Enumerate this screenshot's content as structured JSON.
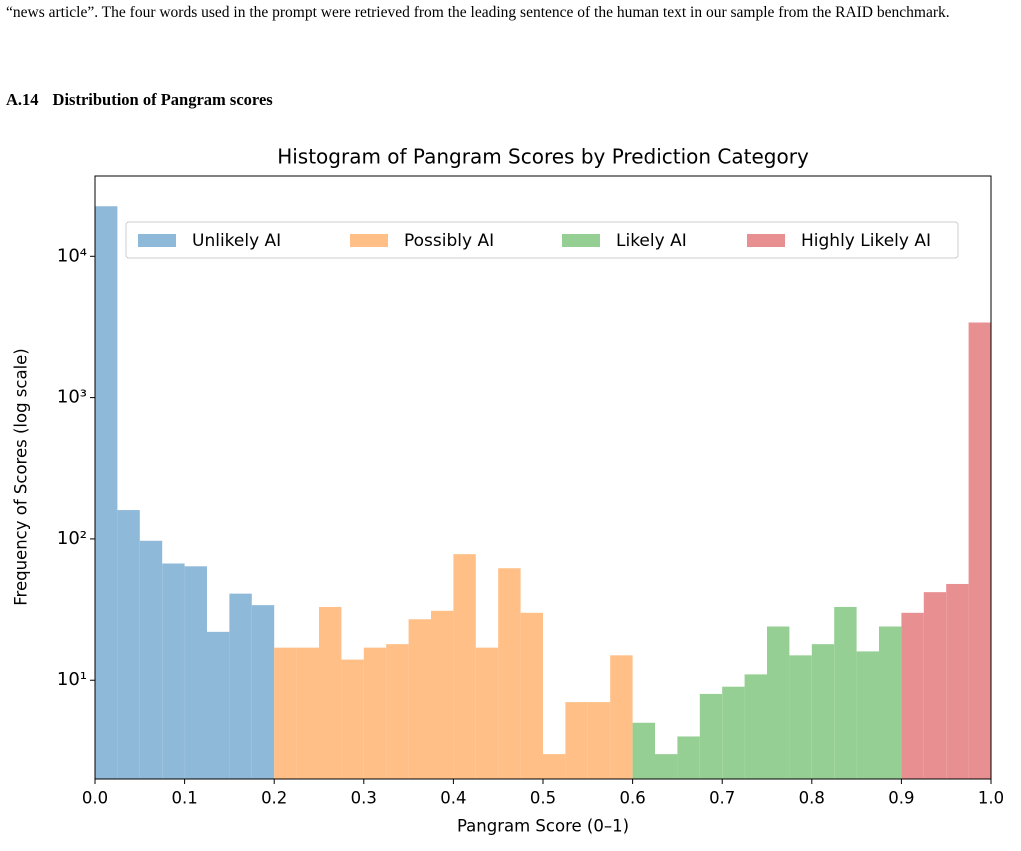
{
  "document": {
    "paragraph": "“news article”. The four words used in the prompt were retrieved from the leading sentence of the human text in our sample from the RAID benchmark.",
    "section_number": "A.14",
    "section_title": "Distribution of Pangram scores"
  },
  "chart_data": {
    "type": "histogram",
    "title": "Histogram of Pangram Scores by Prediction Category",
    "x_label": "Pangram Score (0–1)",
    "y_label": "Frequency of Scores (log scale)",
    "log_scale": true,
    "legend": "upper center",
    "xlim": [
      0,
      1
    ],
    "xticks": [
      {
        "value": 0,
        "label": "0.0"
      },
      0.1,
      0.2,
      0.3,
      0.4,
      0.5,
      0.6,
      0.7,
      0.8,
      0.9,
      {
        "value": 1,
        "label": "1.0"
      }
    ],
    "ylim": [
      2,
      37000
    ],
    "yticks": [
      {
        "value": 10,
        "label": "10¹"
      },
      {
        "value": 100,
        "label": "10²"
      },
      {
        "value": 1000,
        "label": "10³"
      },
      {
        "value": 10000,
        "label": "10⁴"
      }
    ],
    "series": [
      {
        "name": "Unlikely AI",
        "color": "#8fb9d9",
        "bins": [
          0,
          0.025,
          0.05,
          0.075,
          0.1,
          0.125,
          0.15,
          0.175,
          0.2
        ],
        "values": [
          22600,
          160,
          97,
          67,
          64,
          22,
          41,
          34
        ]
      },
      {
        "name": "Possibly AI",
        "color": "#ffbf86",
        "bins": [
          0.2,
          0.225,
          0.25,
          0.275,
          0.3,
          0.325,
          0.35,
          0.375,
          0.4,
          0.425,
          0.45,
          0.475,
          0.5,
          0.525,
          0.55,
          0.575,
          0.6
        ],
        "values": [
          17,
          17,
          33,
          14,
          17,
          18,
          27,
          31,
          78,
          17,
          62,
          30,
          3,
          7,
          7,
          15
        ]
      },
      {
        "name": "Likely AI",
        "color": "#96cf94",
        "bins": [
          0.6,
          0.625,
          0.65,
          0.675,
          0.7,
          0.725,
          0.75,
          0.775,
          0.8,
          0.825,
          0.85,
          0.875,
          0.9
        ],
        "values": [
          5,
          3,
          4,
          8,
          9,
          11,
          24,
          15,
          18,
          33,
          16,
          24
        ]
      },
      {
        "name": "Highly Likely AI",
        "color": "#e88f92",
        "bins": [
          0.9,
          0.925,
          0.95,
          0.975,
          1
        ],
        "values": [
          30,
          42,
          48,
          3400
        ]
      }
    ]
  }
}
